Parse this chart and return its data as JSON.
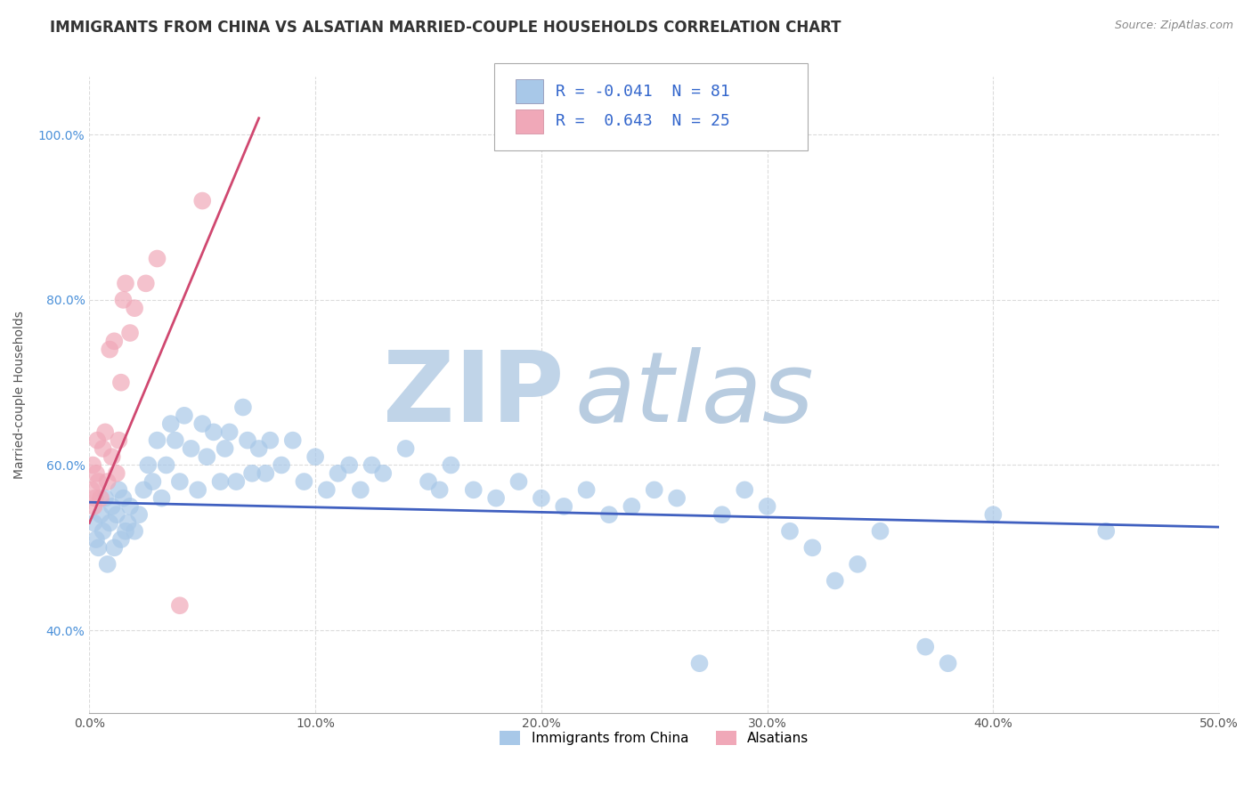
{
  "title": "IMMIGRANTS FROM CHINA VS ALSATIAN MARRIED-COUPLE HOUSEHOLDS CORRELATION CHART",
  "source": "Source: ZipAtlas.com",
  "ylabel": "Married-couple Households",
  "x_tick_labels": [
    "0.0%",
    "10.0%",
    "20.0%",
    "30.0%",
    "40.0%",
    "50.0%"
  ],
  "x_tick_values": [
    0,
    10,
    20,
    30,
    40,
    50
  ],
  "y_tick_labels": [
    "40.0%",
    "60.0%",
    "80.0%",
    "100.0%"
  ],
  "y_tick_values": [
    40,
    60,
    80,
    100
  ],
  "xlim": [
    0,
    50
  ],
  "ylim": [
    30,
    107
  ],
  "legend_labels": [
    "Immigrants from China",
    "Alsatians"
  ],
  "R_blue": -0.041,
  "N_blue": 81,
  "R_pink": 0.643,
  "N_pink": 25,
  "blue_color": "#a8c8e8",
  "pink_color": "#f0a8b8",
  "blue_line_color": "#4060c0",
  "pink_line_color": "#d04870",
  "watermark_zip": "ZIP",
  "watermark_atlas": "atlas",
  "watermark_color_zip": "#c0d4e8",
  "watermark_color_atlas": "#b8cce0",
  "background_color": "#ffffff",
  "grid_color": "#cccccc",
  "title_color": "#333333",
  "blue_scatter": [
    [
      0.2,
      53
    ],
    [
      0.3,
      51
    ],
    [
      0.4,
      50
    ],
    [
      0.5,
      54
    ],
    [
      0.6,
      52
    ],
    [
      0.7,
      56
    ],
    [
      0.8,
      48
    ],
    [
      0.9,
      53
    ],
    [
      1.0,
      55
    ],
    [
      1.1,
      50
    ],
    [
      1.2,
      54
    ],
    [
      1.3,
      57
    ],
    [
      1.4,
      51
    ],
    [
      1.5,
      56
    ],
    [
      1.6,
      52
    ],
    [
      1.7,
      53
    ],
    [
      1.8,
      55
    ],
    [
      2.0,
      52
    ],
    [
      2.2,
      54
    ],
    [
      2.4,
      57
    ],
    [
      2.6,
      60
    ],
    [
      2.8,
      58
    ],
    [
      3.0,
      63
    ],
    [
      3.2,
      56
    ],
    [
      3.4,
      60
    ],
    [
      3.6,
      65
    ],
    [
      3.8,
      63
    ],
    [
      4.0,
      58
    ],
    [
      4.2,
      66
    ],
    [
      4.5,
      62
    ],
    [
      4.8,
      57
    ],
    [
      5.0,
      65
    ],
    [
      5.2,
      61
    ],
    [
      5.5,
      64
    ],
    [
      5.8,
      58
    ],
    [
      6.0,
      62
    ],
    [
      6.2,
      64
    ],
    [
      6.5,
      58
    ],
    [
      6.8,
      67
    ],
    [
      7.0,
      63
    ],
    [
      7.2,
      59
    ],
    [
      7.5,
      62
    ],
    [
      7.8,
      59
    ],
    [
      8.0,
      63
    ],
    [
      8.5,
      60
    ],
    [
      9.0,
      63
    ],
    [
      9.5,
      58
    ],
    [
      10.0,
      61
    ],
    [
      10.5,
      57
    ],
    [
      11.0,
      59
    ],
    [
      11.5,
      60
    ],
    [
      12.0,
      57
    ],
    [
      12.5,
      60
    ],
    [
      13.0,
      59
    ],
    [
      14.0,
      62
    ],
    [
      15.0,
      58
    ],
    [
      15.5,
      57
    ],
    [
      16.0,
      60
    ],
    [
      17.0,
      57
    ],
    [
      18.0,
      56
    ],
    [
      19.0,
      58
    ],
    [
      20.0,
      56
    ],
    [
      21.0,
      55
    ],
    [
      22.0,
      57
    ],
    [
      23.0,
      54
    ],
    [
      24.0,
      55
    ],
    [
      25.0,
      57
    ],
    [
      26.0,
      56
    ],
    [
      27.0,
      36
    ],
    [
      28.0,
      54
    ],
    [
      29.0,
      57
    ],
    [
      30.0,
      55
    ],
    [
      31.0,
      52
    ],
    [
      32.0,
      50
    ],
    [
      33.0,
      46
    ],
    [
      34.0,
      48
    ],
    [
      35.0,
      52
    ],
    [
      37.0,
      38
    ],
    [
      38.0,
      36
    ],
    [
      40.0,
      54
    ],
    [
      45.0,
      52
    ]
  ],
  "pink_scatter": [
    [
      0.1,
      57
    ],
    [
      0.15,
      60
    ],
    [
      0.2,
      55
    ],
    [
      0.25,
      56
    ],
    [
      0.3,
      59
    ],
    [
      0.35,
      63
    ],
    [
      0.4,
      58
    ],
    [
      0.5,
      56
    ],
    [
      0.6,
      62
    ],
    [
      0.7,
      64
    ],
    [
      0.8,
      58
    ],
    [
      0.9,
      74
    ],
    [
      1.0,
      61
    ],
    [
      1.1,
      75
    ],
    [
      1.2,
      59
    ],
    [
      1.3,
      63
    ],
    [
      1.4,
      70
    ],
    [
      1.5,
      80
    ],
    [
      1.6,
      82
    ],
    [
      1.8,
      76
    ],
    [
      2.0,
      79
    ],
    [
      2.5,
      82
    ],
    [
      3.0,
      85
    ],
    [
      4.0,
      43
    ],
    [
      5.0,
      92
    ]
  ],
  "pink_line_x": [
    0,
    7.5
  ],
  "pink_line_y": [
    53,
    102
  ],
  "blue_line_x": [
    0,
    50
  ],
  "blue_line_y": [
    55.5,
    52.5
  ],
  "title_fontsize": 12,
  "axis_label_fontsize": 10,
  "tick_fontsize": 10,
  "legend_fontsize": 12
}
